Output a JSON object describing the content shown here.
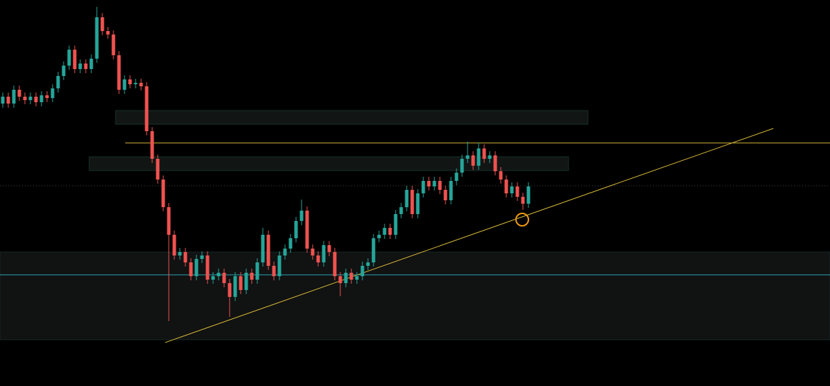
{
  "chart_data": {
    "type": "candlestick",
    "up_color": "#26a69a",
    "down_color": "#ef5350",
    "ylim": [
      0,
      559
    ],
    "open": [
      409,
      419,
      409,
      429,
      419,
      414,
      419,
      411,
      421,
      417,
      431,
      449,
      464,
      487,
      459,
      467,
      459,
      474,
      534,
      514,
      509,
      479,
      429,
      444,
      437,
      439,
      434,
      369,
      329,
      299,
      259,
      219,
      189,
      194,
      179,
      159,
      184,
      189,
      154,
      159,
      164,
      149,
      129,
      159,
      139,
      164,
      154,
      179,
      219,
      174,
      159,
      189,
      199,
      214,
      239,
      254,
      199,
      189,
      179,
      204,
      194,
      159,
      149,
      164,
      154,
      159,
      174,
      179,
      214,
      219,
      229,
      219,
      249,
      259,
      284,
      249,
      279,
      297,
      289,
      297,
      284,
      269,
      297,
      309,
      329,
      334,
      319,
      344,
      329,
      334,
      311,
      299,
      279,
      289,
      274,
      264
    ],
    "high": [
      425,
      425,
      435,
      435,
      425,
      425,
      425,
      427,
      427,
      437,
      455,
      470,
      493,
      493,
      473,
      473,
      480,
      549,
      540,
      520,
      515,
      485,
      450,
      450,
      445,
      445,
      440,
      375,
      335,
      305,
      265,
      225,
      200,
      200,
      185,
      190,
      195,
      195,
      165,
      170,
      170,
      155,
      165,
      165,
      170,
      170,
      185,
      229,
      225,
      180,
      195,
      205,
      220,
      245,
      270,
      260,
      205,
      195,
      210,
      210,
      200,
      165,
      170,
      170,
      165,
      180,
      185,
      220,
      225,
      235,
      235,
      255,
      265,
      290,
      290,
      285,
      303,
      303,
      303,
      303,
      290,
      303,
      315,
      335,
      354,
      340,
      352,
      350,
      340,
      340,
      317,
      305,
      295,
      295,
      280,
      295
    ],
    "low": [
      403,
      403,
      403,
      413,
      408,
      408,
      405,
      405,
      411,
      411,
      425,
      443,
      458,
      453,
      453,
      453,
      453,
      468,
      508,
      503,
      473,
      423,
      423,
      431,
      431,
      428,
      363,
      323,
      293,
      253,
      94,
      183,
      183,
      173,
      153,
      153,
      178,
      148,
      148,
      153,
      143,
      100,
      123,
      133,
      133,
      148,
      148,
      173,
      168,
      153,
      153,
      183,
      193,
      208,
      233,
      193,
      183,
      173,
      173,
      188,
      153,
      130,
      143,
      148,
      148,
      153,
      168,
      173,
      208,
      213,
      213,
      213,
      243,
      253,
      243,
      243,
      273,
      283,
      283,
      278,
      263,
      263,
      291,
      303,
      323,
      313,
      313,
      323,
      323,
      305,
      293,
      273,
      273,
      268,
      255,
      258
    ],
    "close": [
      419,
      409,
      429,
      419,
      414,
      419,
      411,
      421,
      417,
      431,
      449,
      464,
      487,
      459,
      467,
      459,
      474,
      534,
      514,
      509,
      479,
      429,
      444,
      437,
      439,
      434,
      369,
      329,
      299,
      259,
      219,
      189,
      194,
      179,
      159,
      184,
      189,
      154,
      159,
      164,
      149,
      129,
      159,
      139,
      164,
      154,
      179,
      219,
      174,
      159,
      189,
      199,
      214,
      239,
      254,
      199,
      189,
      179,
      204,
      194,
      159,
      149,
      164,
      154,
      159,
      174,
      179,
      214,
      219,
      229,
      219,
      249,
      259,
      284,
      249,
      279,
      297,
      289,
      297,
      284,
      269,
      297,
      309,
      329,
      334,
      319,
      344,
      329,
      334,
      311,
      299,
      279,
      289,
      274,
      264,
      289
    ]
  }
}
